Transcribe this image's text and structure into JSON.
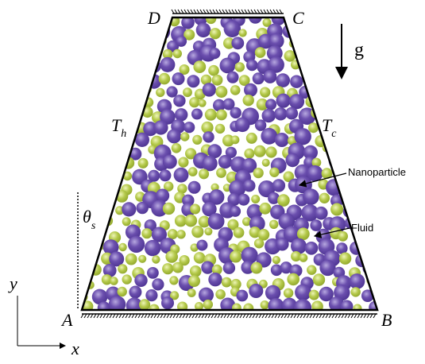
{
  "vertices": {
    "A": "A",
    "B": "B",
    "C": "C",
    "D": "D"
  },
  "gravity": "g",
  "hot_wall": {
    "symbol": "T",
    "subscript": "h"
  },
  "cold_wall": {
    "symbol": "T",
    "subscript": "c"
  },
  "angle": {
    "symbol": "θ",
    "subscript": "s"
  },
  "annotations": {
    "nanoparticle": "Nanoparticle",
    "fluid": "Fluid"
  },
  "axes": {
    "x": "x",
    "y": "y"
  }
}
